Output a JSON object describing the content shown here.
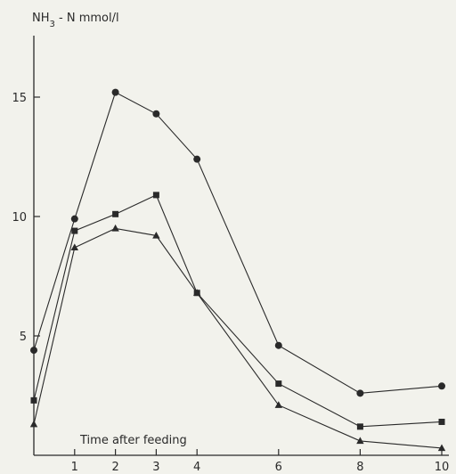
{
  "chart_data": {
    "type": "line",
    "title": "",
    "ylabel": "NH3 - N mmol/l",
    "ylabel_parts": {
      "main": "NH",
      "sub": "3",
      "rest": " - N mmol/l"
    },
    "xlabel": "Time after feeding",
    "xlim": [
      0,
      10.2
    ],
    "ylim": [
      0,
      18
    ],
    "x_ticks": [
      1,
      2,
      3,
      4,
      6,
      8,
      10
    ],
    "y_ticks": [
      5,
      10,
      15
    ],
    "grid": false,
    "x": [
      0,
      1,
      2,
      3,
      4,
      6,
      8,
      10
    ],
    "series": [
      {
        "marker": "circle",
        "values": [
          4.4,
          9.9,
          15.2,
          14.3,
          12.4,
          4.6,
          2.6,
          2.9
        ]
      },
      {
        "marker": "square",
        "values": [
          2.3,
          9.4,
          10.1,
          10.9,
          6.8,
          3.0,
          1.2,
          1.4
        ]
      },
      {
        "marker": "triangle",
        "values": [
          1.3,
          8.7,
          9.5,
          9.2,
          6.8,
          2.1,
          0.6,
          0.3
        ]
      }
    ],
    "colors": {
      "ink": "#2a2a2a",
      "background": "#f2f2ec"
    }
  }
}
